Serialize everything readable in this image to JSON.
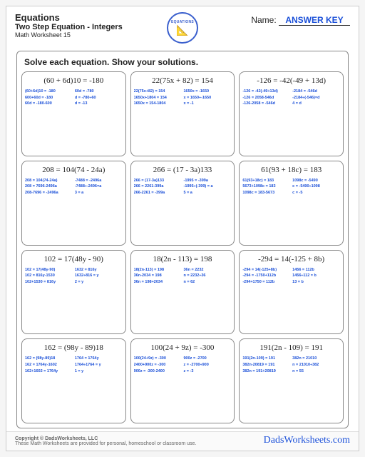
{
  "header": {
    "title": "Equations",
    "subtitle": "Two Step Equation - Integers",
    "worksheet": "Math Worksheet 15",
    "logo_text": "EQUATIONS",
    "name_label": "Name:",
    "answer_key": "ANSWER KEY"
  },
  "instruction": "Solve each equation.  Show your solutions.",
  "problems": [
    {
      "equation": "(60 + 6d)10 = -180",
      "steps": [
        "(60+6d)10 = -180",
        "60d = -780",
        "600+60d = -180",
        "d = -780÷60",
        "60d = -180-600",
        "d = -13"
      ]
    },
    {
      "equation": "22(75x + 82) = 154",
      "steps": [
        "22(75x+82) = 154",
        "1650x = -1650",
        "1650x+1804 = 154",
        "x = 1650÷-1650",
        "1650x = 154-1804",
        "x = -1"
      ]
    },
    {
      "equation": "-126 = -42(-49 + 13d)",
      "steps": [
        "-126 = -42(-49+13d)",
        "-2184 = -546d",
        "-126 = 2058-546d",
        "-2184÷(-546)=d",
        "-126-2058 = -546d",
        "4 = d"
      ]
    },
    {
      "equation": "208 = 104(74 - 24a)",
      "steps": [
        "208 = 104(74-24a)",
        "-7488 = -2496a",
        "208 = 7696-2496a",
        "-7488÷-2496=a",
        "208-7696 = -2496a",
        "3 = a"
      ]
    },
    {
      "equation": "266 = (17 - 3a)133",
      "steps": [
        "266 = (17-3a)133",
        "-1995 = -399a",
        "266 = 2261-399a",
        "-1995÷(-399) = a",
        "266-2261 = -399a",
        "5 = a"
      ]
    },
    {
      "equation": "61(93 + 18c) = 183",
      "steps": [
        "61(93+18c) = 183",
        "1098c = -5490",
        "5673+1098c = 183",
        "c = -5490÷1098",
        "1098c = 183-5673",
        "c = -5"
      ]
    },
    {
      "equation": "102 = 17(48y - 90)",
      "steps": [
        "102 = 17(48y-90)",
        "1632 = 816y",
        "102 = 816y-1530",
        "1632÷816 = y",
        "102+1530 = 816y",
        "2 = y"
      ]
    },
    {
      "equation": "18(2n - 113) = 198",
      "steps": [
        "18(2n-113) = 198",
        "36n = 2232",
        "36n-2034 = 198",
        "n = 2232÷36",
        "36n = 198+2034",
        "n = 62"
      ]
    },
    {
      "equation": "-294 = 14(-125 + 8b)",
      "steps": [
        "-294 = 14(-125+8b)",
        "1456 = 112b",
        "-294 = -1750+112b",
        "1456÷112 = b",
        "-294+1750 = 112b",
        "13 = b"
      ]
    },
    {
      "equation": "162 = (98y - 89)18",
      "steps": [
        "162 = (98y-89)18",
        "1764 = 1764y",
        "162 = 1764y-1602",
        "1764÷1764 = y",
        "162+1602 = 1764y",
        "1 = y"
      ]
    },
    {
      "equation": "100(24 + 9z) = -300",
      "steps": [
        "100(24+9z) = -300",
        "900z = -2700",
        "2400+900z = -300",
        "z = -2700÷900",
        "900z = -300-2400",
        "z = -3"
      ]
    },
    {
      "equation": "191(2n - 109) = 191",
      "steps": [
        "191(2n-109) = 191",
        "382n = 21010",
        "382n-20819 = 191",
        "n = 21010÷382",
        "382n = 191+20819",
        "n = 55"
      ]
    }
  ],
  "footer": {
    "copyright1": "Copyright © DadsWorksheets, LLC",
    "copyright2": "These Math Worksheets are provided for personal, homeschool or classroom use.",
    "brand": "DadsWorksheets.com"
  },
  "colors": {
    "accent": "#1a4fd8",
    "border": "#888",
    "text": "#222"
  }
}
